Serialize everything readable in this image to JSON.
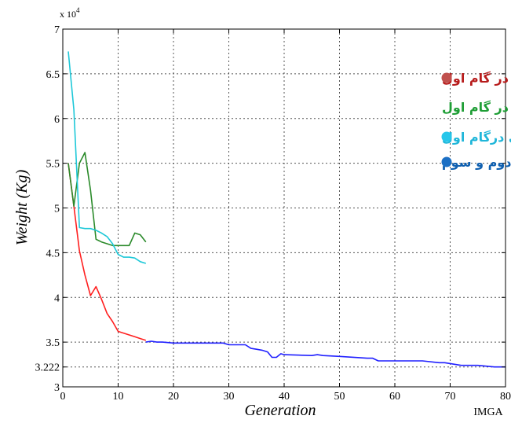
{
  "chart_data": {
    "type": "line",
    "xlabel": "Generation",
    "ylabel": "Weight (Kg)",
    "y_exponent_label": "x 10",
    "y_exponent_power": "4",
    "corner_label": "IMGA",
    "xlim": [
      0,
      80
    ],
    "ylim": [
      3,
      7
    ],
    "x_ticks": [
      0,
      10,
      20,
      30,
      40,
      50,
      60,
      70,
      80
    ],
    "x_tick_labels": [
      "0",
      "10",
      "20",
      "30",
      "40",
      "50",
      "60",
      "70",
      "80"
    ],
    "y_ticks": [
      3,
      3.222,
      3.5,
      4,
      4.5,
      5,
      5.5,
      6,
      6.5,
      7
    ],
    "y_tick_labels": [
      "3",
      "3.222",
      "3.5",
      "4",
      "4.5",
      "5",
      "5.5",
      "6",
      "6.5",
      "7"
    ],
    "grid": true,
    "legend_placement": "top-right",
    "legend": [
      {
        "text": "جامعه‌ی موازی در گام اول",
        "color": "#b71c1c",
        "dot_color": "#c0504d",
        "has_dot": true
      },
      {
        "text": "جامعه‌ی موازی در گام اول",
        "color": "#1f9e36",
        "dot_color": "",
        "has_dot": false
      },
      {
        "text": "جامعه‌ی موازی درگام اول",
        "color": "#1fb6d9",
        "dot_color": "#26c6ea",
        "has_dot": true
      },
      {
        "text": "جامعه درگام دوم و سوم",
        "color": "#1060b0",
        "dot_color": "#1b6fc4",
        "has_dot": true
      }
    ],
    "series": [
      {
        "color": "#ff1f1f",
        "x": [
          1,
          2,
          3,
          4,
          5,
          6,
          7,
          8,
          9,
          10,
          11,
          12,
          13,
          14,
          15
        ],
        "y": [
          5.5,
          5.02,
          4.52,
          4.25,
          4.02,
          4.12,
          3.98,
          3.82,
          3.73,
          3.62,
          3.6,
          3.58,
          3.56,
          3.54,
          3.52
        ]
      },
      {
        "color": "#2a8a2a",
        "x": [
          1,
          2,
          3,
          4,
          5,
          6,
          7,
          8,
          9,
          10,
          11,
          12,
          13,
          14,
          15
        ],
        "y": [
          5.5,
          5.02,
          5.5,
          5.62,
          5.2,
          4.65,
          4.62,
          4.6,
          4.58,
          4.58,
          4.58,
          4.58,
          4.72,
          4.7,
          4.62
        ]
      },
      {
        "color": "#1ec8d8",
        "x": [
          1,
          2,
          3,
          4,
          5,
          6,
          7,
          8,
          9,
          10,
          11,
          12,
          13,
          14,
          15
        ],
        "y": [
          6.75,
          6.1,
          4.78,
          4.77,
          4.77,
          4.75,
          4.72,
          4.68,
          4.6,
          4.48,
          4.45,
          4.45,
          4.44,
          4.4,
          4.38
        ]
      },
      {
        "color": "#2020ff",
        "x": [
          15,
          16,
          17,
          18,
          20,
          25,
          29,
          30,
          32,
          33,
          34,
          35,
          36,
          37,
          37.8,
          38.6,
          39.4,
          40,
          45,
          46,
          47,
          50,
          55,
          56,
          57,
          60,
          65,
          68,
          69,
          70,
          72,
          75,
          78,
          80
        ],
        "y": [
          3.5,
          3.51,
          3.5,
          3.5,
          3.49,
          3.49,
          3.49,
          3.47,
          3.47,
          3.47,
          3.43,
          3.42,
          3.41,
          3.39,
          3.33,
          3.33,
          3.37,
          3.36,
          3.35,
          3.36,
          3.35,
          3.34,
          3.32,
          3.32,
          3.29,
          3.29,
          3.29,
          3.27,
          3.27,
          3.26,
          3.24,
          3.24,
          3.222,
          3.222
        ]
      }
    ]
  }
}
